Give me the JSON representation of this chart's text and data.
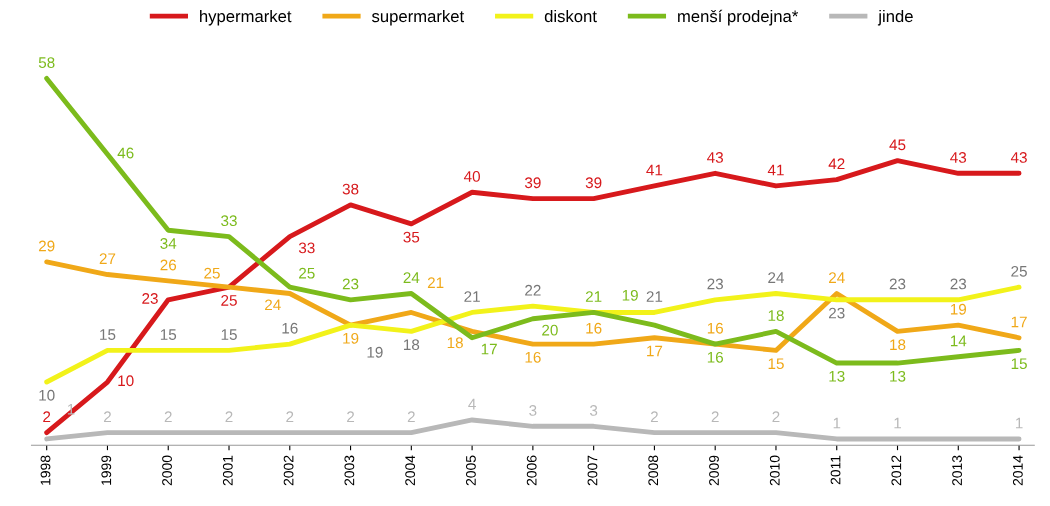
{
  "chart_data": {
    "type": "line",
    "categories": [
      "1998",
      "1999",
      "2000",
      "2001",
      "2002",
      "2003",
      "2004",
      "2005",
      "2006",
      "2007",
      "2008",
      "2009",
      "2010",
      "2011",
      "2012",
      "2013",
      "2014"
    ],
    "legend": "top",
    "grid": false,
    "marker": "none",
    "line_style": "solid",
    "series": [
      {
        "name": "hypermarket",
        "color": "#d7191c",
        "values": [
          2,
          10,
          23,
          25,
          33,
          38,
          35,
          40,
          39,
          39,
          41,
          43,
          41,
          42,
          45,
          43,
          43
        ],
        "value_labels": [
          "2",
          "10",
          "23",
          "25",
          "33",
          "38",
          "35",
          "40",
          "39",
          "39",
          "41",
          "43",
          "41",
          "42",
          "45",
          "43",
          "43"
        ]
      },
      {
        "name": "supermarket",
        "color": "#f0a818",
        "values": [
          29,
          27,
          26,
          25,
          24,
          19,
          21,
          18,
          16,
          16,
          17,
          16,
          15,
          24,
          18,
          19,
          17
        ],
        "value_labels": [
          "29",
          "27",
          "26",
          "25",
          "24",
          "19",
          "21",
          "18",
          "16",
          "16",
          "17",
          "16",
          "15",
          "24",
          "18",
          "19",
          "17"
        ]
      },
      {
        "name": "diskont",
        "color": "#f2f21a",
        "values": [
          10,
          15,
          15,
          15,
          16,
          19,
          18,
          21,
          22,
          21,
          21,
          23,
          24,
          23,
          23,
          23,
          25
        ],
        "value_labels": [
          "10",
          "15",
          "15",
          "15",
          "16",
          "19",
          "18",
          "21",
          "22",
          null,
          "21",
          "23",
          "24",
          "23",
          "23",
          "23",
          "25"
        ]
      },
      {
        "name": "menší prodejna*",
        "color": "#7cbb1c",
        "values": [
          58,
          46,
          34,
          33,
          25,
          23,
          24,
          17,
          20,
          21,
          19,
          16,
          18,
          13,
          13,
          14,
          15
        ],
        "value_labels": [
          "58",
          "46",
          "34",
          "33",
          "25",
          "23",
          "24",
          "17",
          "20",
          "21",
          "19",
          "16",
          "18",
          "13",
          "13",
          "14",
          "15"
        ]
      },
      {
        "name": "jinde",
        "color": "#b8b8b8",
        "values": [
          1,
          2,
          2,
          2,
          2,
          2,
          2,
          4,
          3,
          3,
          2,
          2,
          2,
          1,
          1,
          1,
          1
        ],
        "value_labels": [
          "1",
          "2",
          "2",
          "2",
          "2",
          "2",
          "2",
          "4",
          "3",
          "3",
          "2",
          "2",
          "2",
          "1",
          "1",
          null,
          "1"
        ]
      }
    ]
  }
}
